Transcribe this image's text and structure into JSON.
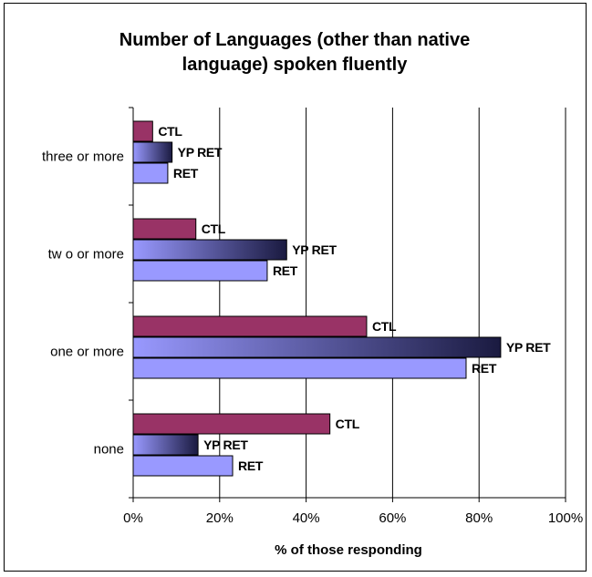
{
  "chart_data": {
    "type": "bar",
    "orientation": "horizontal",
    "title_lines": [
      "Number of Languages (other than native",
      "language) spoken fluently"
    ],
    "xlabel": "% of those responding",
    "ylabel": "",
    "xlim": [
      0,
      100
    ],
    "x_ticks": [
      "0%",
      "20%",
      "40%",
      "60%",
      "80%",
      "100%"
    ],
    "grid": true,
    "legend": "none",
    "categories": [
      "three or more",
      "two or more",
      "one or more",
      "none"
    ],
    "category_labels": [
      "three or more",
      "tw o or more",
      "one or more",
      "none"
    ],
    "series": [
      {
        "name": "CTL",
        "values": [
          4.5,
          14.5,
          54.0,
          45.5
        ],
        "color": "#993366"
      },
      {
        "name": "YP RET",
        "values": [
          9.0,
          35.5,
          85.0,
          15.0
        ],
        "color_start": "#9999ff",
        "color_end": "#1a1a40"
      },
      {
        "name": "RET",
        "values": [
          8.0,
          31.0,
          77.0,
          23.0
        ],
        "color": "#9999ff"
      }
    ]
  }
}
